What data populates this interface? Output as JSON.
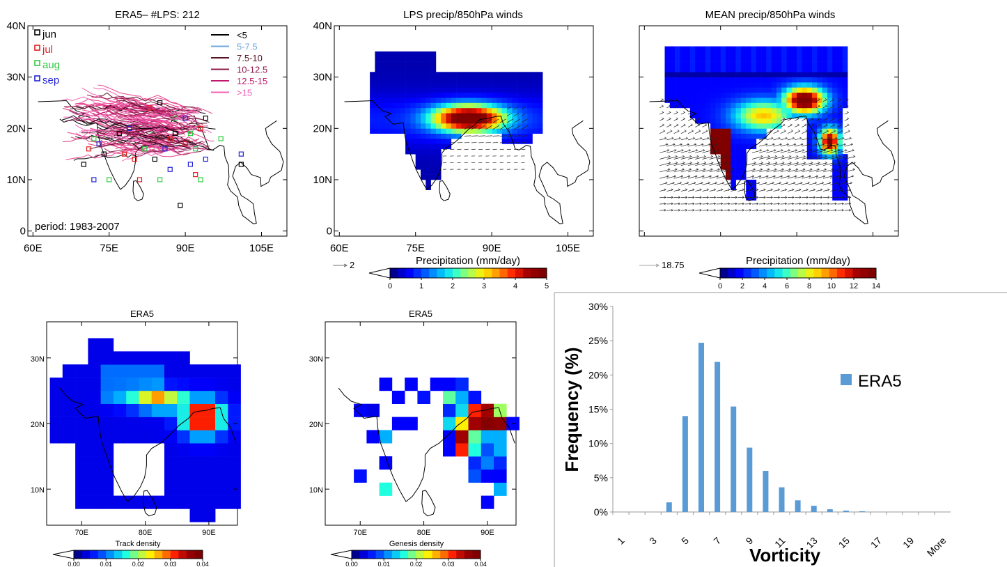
{
  "panels": {
    "tracks": {
      "title": "ERA5– #LPS: 212",
      "months": [
        {
          "label": "jun",
          "color": "#000000"
        },
        {
          "label": "jul",
          "color": "#e41a1c"
        },
        {
          "label": "aug",
          "color": "#2ecc40"
        },
        {
          "label": "sep",
          "color": "#1f1fd6"
        }
      ],
      "intensity": [
        {
          "label": "<5",
          "color": "#000000"
        },
        {
          "label": "5-7.5",
          "color": "#6fa8dc"
        },
        {
          "label": "7.5-10",
          "color": "#5a1426"
        },
        {
          "label": "10-12.5",
          "color": "#8e1b4a"
        },
        {
          "label": "12.5-15",
          "color": "#c2186b"
        },
        {
          "label": ">15",
          "color": "#f062b5"
        }
      ],
      "period": "period: 1983-2007",
      "xticks": [
        "60E",
        "75E",
        "90E",
        "105E"
      ],
      "yticks": [
        "0",
        "10N",
        "20N",
        "30N",
        "40N"
      ]
    },
    "lps_precip": {
      "title": "LPS precip/850hPa winds",
      "xticks": [
        "60E",
        "75E",
        "90E",
        "105E"
      ],
      "yticks": [
        "0",
        "10N",
        "20N",
        "30N",
        "40N"
      ],
      "ref_vector": "2",
      "colorbar_label": "Precipitation (mm/day)",
      "colorbar_ticks": [
        "0",
        "1",
        "2",
        "3",
        "4",
        "5"
      ]
    },
    "mean_precip": {
      "title": "MEAN precip/850hPa winds",
      "ref_vector": "18.75",
      "colorbar_label": "Precipitation (mm/day)",
      "colorbar_ticks": [
        "0",
        "2",
        "4",
        "6",
        "8",
        "10",
        "12",
        "14"
      ]
    },
    "track_density": {
      "title": "ERA5",
      "xticks": [
        "70E",
        "80E",
        "90E"
      ],
      "yticks": [
        "10N",
        "20N",
        "30N"
      ],
      "xlabel": "Track density",
      "colorbar_ticks": [
        "0.00",
        "0.01",
        "0.02",
        "0.03",
        "0.04"
      ]
    },
    "genesis_density": {
      "title": "ERA5",
      "xticks": [
        "70E",
        "80E",
        "90E"
      ],
      "yticks": [
        "10N",
        "20N",
        "30N"
      ],
      "xlabel": "Genesis density",
      "colorbar_ticks": [
        "0.00",
        "0.01",
        "0.02",
        "0.03",
        "0.04"
      ]
    }
  },
  "chart_data": {
    "type": "bar",
    "categories": [
      "1",
      "2",
      "3",
      "4",
      "5",
      "6",
      "7",
      "8",
      "9",
      "10",
      "11",
      "12",
      "13",
      "14",
      "15",
      "16",
      "17",
      "18",
      "19",
      "20",
      "More"
    ],
    "shown_category_labels": [
      "1",
      "3",
      "5",
      "7",
      "9",
      "11",
      "13",
      "15",
      "17",
      "19",
      "More"
    ],
    "series": [
      {
        "name": "ERA5",
        "values": [
          0,
          0,
          0,
          1.4,
          14.0,
          24.7,
          21.9,
          15.4,
          9.4,
          6.0,
          3.6,
          1.7,
          0.9,
          0.4,
          0.2,
          0.1,
          0,
          0,
          0,
          0,
          0
        ]
      }
    ],
    "xlabel": "Vorticity",
    "ylabel": "Frequency (%)",
    "ylim": [
      0,
      30
    ],
    "yticks": [
      "0%",
      "5%",
      "10%",
      "15%",
      "20%",
      "25%",
      "30%"
    ],
    "legend": "right",
    "grid": false,
    "bar_color": "#5b9bd5"
  }
}
